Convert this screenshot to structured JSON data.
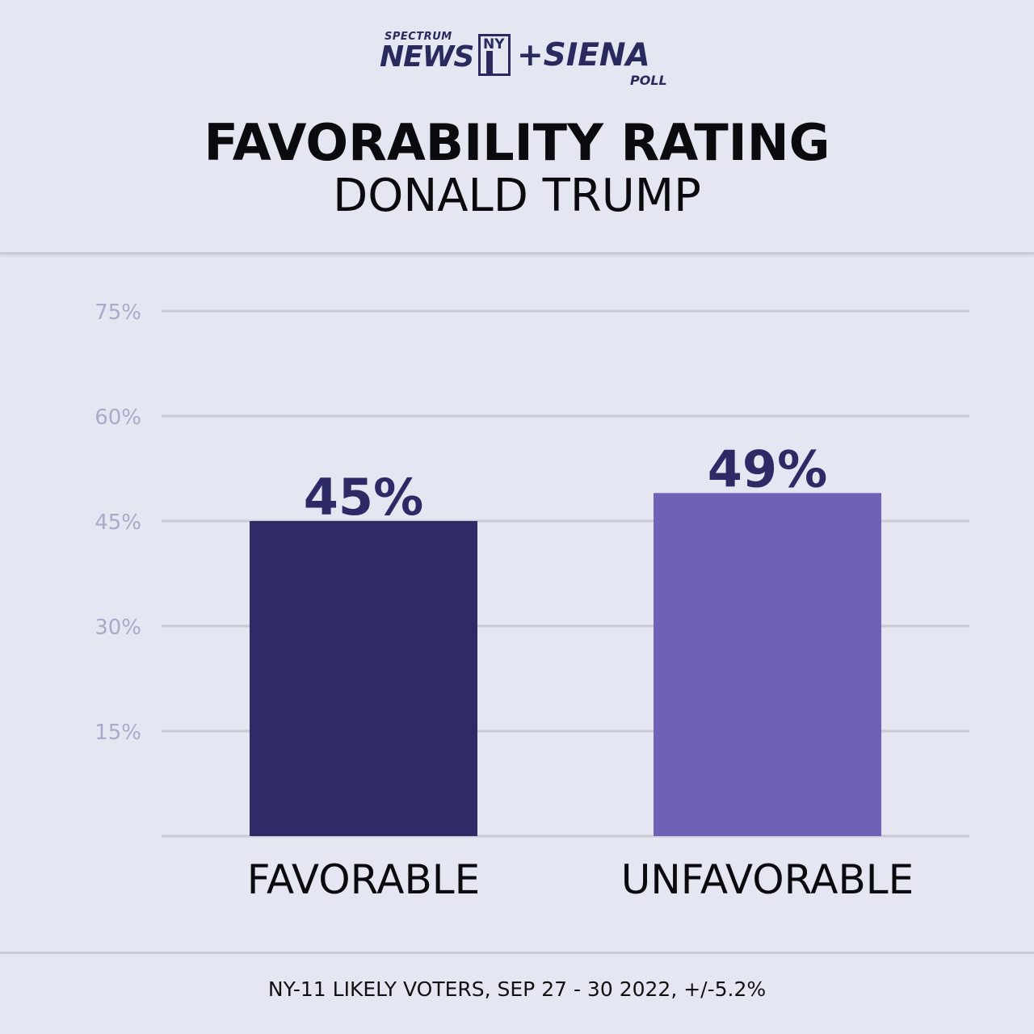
{
  "logo": {
    "spectrum": "SPECTRUM",
    "news": "NEWS",
    "ny": "NY",
    "siena": "+SIENA",
    "poll": "POLL"
  },
  "title": "FAVORABILITY RATING",
  "subtitle": "DONALD TRUMP",
  "footer": "NY-11 LIKELY VOTERS, SEP 27 - 30 2022, +/-5.2%",
  "colors": {
    "favorable": "#302b66",
    "unfavorable": "#6e62b6",
    "grid": "#c9cad3",
    "tick": "#a9aac8"
  },
  "chart_data": {
    "type": "bar",
    "categories": [
      "FAVORABLE",
      "UNFAVORABLE"
    ],
    "values": [
      45,
      49
    ],
    "data_labels": [
      "45%",
      "49%"
    ],
    "yticks": [
      15,
      30,
      45,
      60,
      75
    ],
    "ytick_labels": [
      "15%",
      "30%",
      "45%",
      "60%",
      "75%"
    ],
    "ylim": [
      0,
      75
    ],
    "grid": true,
    "title": "FAVORABILITY RATING",
    "subtitle": "DONALD TRUMP"
  }
}
